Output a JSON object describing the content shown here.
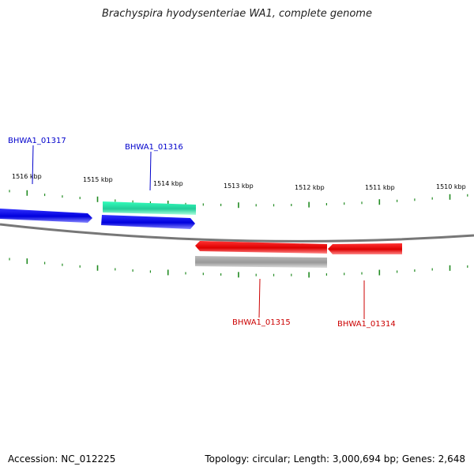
{
  "title": "Brachyspira hyodysenteriae WA1, complete genome",
  "footer": {
    "accession": "Accession: NC_012225",
    "topology": "Topology: circular; Length: 3,000,694 bp; Genes: 2,648"
  },
  "scale_labels": [
    "1516 kbp",
    "1515 kbp",
    "1514 kbp",
    "1513 kbp",
    "1512 kbp",
    "1511 kbp",
    "1510 kbp"
  ],
  "gene_labels": [
    {
      "text": "BHWA1_01317",
      "strand": "forward"
    },
    {
      "text": "BHWA1_01316",
      "strand": "forward"
    },
    {
      "text": "BHWA1_01315",
      "strand": "reverse"
    },
    {
      "text": "BHWA1_01314",
      "strand": "reverse"
    }
  ],
  "colors": {
    "forward_cds": "#0000ee",
    "reverse_cds": "#ee0000",
    "rna_feature": "#33ddaa",
    "reverse_gene": "#aaaaaa",
    "backbone": "#777777",
    "ticks": "#228b22",
    "forward_label": "#0000cc",
    "reverse_label": "#cc0000"
  }
}
